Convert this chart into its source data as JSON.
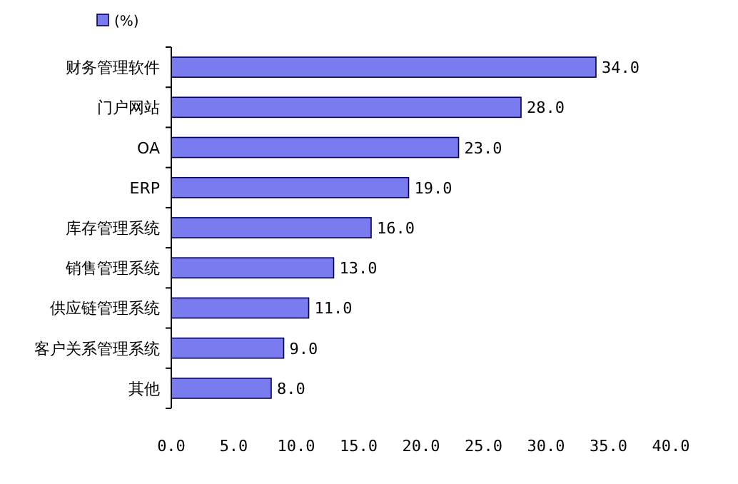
{
  "chart_data": {
    "type": "bar",
    "orientation": "horizontal",
    "categories": [
      "财务管理软件",
      "门户网站",
      "OA",
      "ERP",
      "库存管理系统",
      "销售管理系统",
      "供应链管理系统",
      "客户关系管理系统",
      "其他"
    ],
    "series": [
      {
        "name": "(%)",
        "color": "#7b7bf0",
        "values": [
          34,
          28,
          23,
          19,
          16,
          13,
          11,
          9,
          8
        ],
        "value_labels": [
          "34.0",
          "28.0",
          "23.0",
          "19.0",
          "16.0",
          "13.0",
          "11.0",
          "9.0",
          "8.0"
        ]
      }
    ],
    "xlim": [
      0,
      40
    ],
    "xticks": [
      {
        "value": 0,
        "label": "0.0"
      },
      {
        "value": 5,
        "label": "5.0"
      },
      {
        "value": 10,
        "label": "10.0"
      },
      {
        "value": 15,
        "label": "15.0"
      },
      {
        "value": 20,
        "label": "20.0"
      },
      {
        "value": 25,
        "label": "25.0"
      },
      {
        "value": 30,
        "label": "30.0"
      },
      {
        "value": 35,
        "label": "35.0"
      },
      {
        "value": 40,
        "label": "40.0"
      }
    ],
    "grid": false,
    "legend": "top left"
  }
}
